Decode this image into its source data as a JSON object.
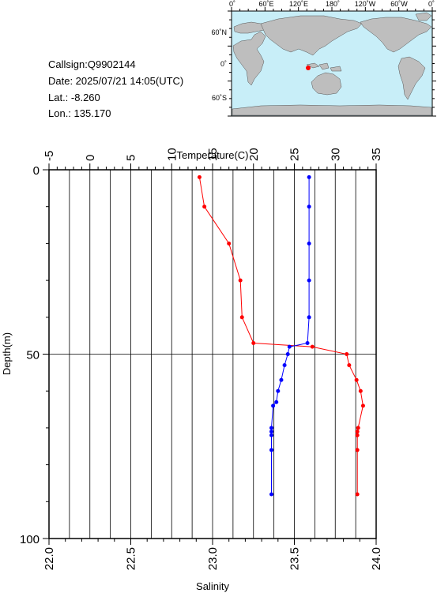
{
  "header": {
    "callsign": "Callsign:Q9902144",
    "date": "Date:  2025/07/21 14:05(UTC)",
    "lat": "Lat.:   -8.260",
    "lon": "Lon.:  135.170"
  },
  "map": {
    "top_labels": [
      "0˚",
      "60˚E",
      "120˚E",
      "180˚",
      "120˚W",
      "60˚W",
      "0˚"
    ],
    "left_labels": [
      "60˚N",
      "0˚",
      "60˚S"
    ],
    "ocean_color": "#c8eef8",
    "land_color": "#bebebe",
    "marker_color": "#ff0000"
  },
  "chart_data": {
    "type": "line",
    "top_axis_label": "Temperature(C)",
    "left_axis_label": "Depth(m)",
    "bottom_axis_label": "Salinity",
    "temperature_ticks": [
      "-5",
      "0",
      "5",
      "10",
      "15",
      "20",
      "25",
      "30",
      "35"
    ],
    "depth_ticks": [
      "0",
      "50",
      "100"
    ],
    "salinity_ticks": [
      "22.0",
      "22.5",
      "23.0",
      "23.5",
      "24.0"
    ],
    "temperature_range": [
      -5,
      35
    ],
    "depth_range": [
      0,
      100
    ],
    "salinity_range": [
      22.0,
      24.0
    ],
    "temperature_color": "#ff0000",
    "salinity_color": "#0000ff",
    "series": [
      {
        "key": "temperature",
        "x": [
          13.4,
          14.0,
          17.0,
          18.4,
          18.6,
          20.0,
          27.2,
          31.4,
          31.7,
          32.6,
          33.1,
          33.4,
          32.8,
          32.7,
          32.7,
          32.7,
          32.7
        ],
        "depth": [
          2,
          10,
          20,
          30,
          40,
          47,
          48,
          50,
          53,
          57,
          60,
          64,
          70,
          71,
          72,
          76,
          88
        ]
      },
      {
        "key": "salinity",
        "x": [
          23.59,
          23.59,
          23.59,
          23.59,
          23.59,
          23.58,
          23.47,
          23.46,
          23.44,
          23.42,
          23.4,
          23.39,
          23.37,
          23.36,
          23.36,
          23.36,
          23.36,
          23.36
        ],
        "depth": [
          2,
          10,
          20,
          30,
          40,
          47,
          48,
          50,
          53,
          57,
          60,
          63,
          64,
          70,
          71,
          72,
          76,
          88
        ]
      }
    ]
  }
}
